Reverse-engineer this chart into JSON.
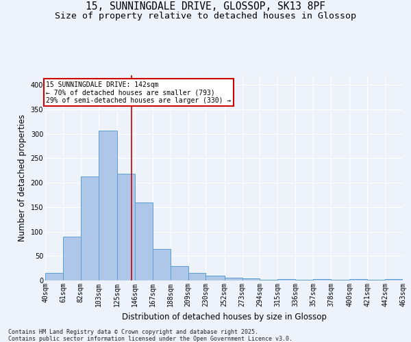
{
  "title_line1": "15, SUNNINGDALE DRIVE, GLOSSOP, SK13 8PF",
  "title_line2": "Size of property relative to detached houses in Glossop",
  "xlabel": "Distribution of detached houses by size in Glossop",
  "ylabel": "Number of detached properties",
  "footnote": "Contains HM Land Registry data © Crown copyright and database right 2025.\nContains public sector information licensed under the Open Government Licence v3.0.",
  "bin_edges": [
    40,
    61,
    82,
    103,
    125,
    146,
    167,
    188,
    209,
    230,
    252,
    273,
    294,
    315,
    336,
    357,
    378,
    400,
    421,
    442,
    463
  ],
  "bar_heights": [
    15,
    90,
    213,
    306,
    218,
    160,
    64,
    30,
    16,
    10,
    6,
    4,
    2,
    3,
    2,
    3,
    2,
    3,
    1,
    3
  ],
  "bar_color": "#aec6e8",
  "bar_edge_color": "#5a9fd4",
  "property_size": 142,
  "vline_color": "#cc0000",
  "annotation_line1": "15 SUNNINGDALE DRIVE: 142sqm",
  "annotation_line2": "← 70% of detached houses are smaller (793)",
  "annotation_line3": "29% of semi-detached houses are larger (330) →",
  "annotation_box_color": "#cc0000",
  "ylim": [
    0,
    420
  ],
  "yticks": [
    0,
    50,
    100,
    150,
    200,
    250,
    300,
    350,
    400
  ],
  "background_color": "#eef2fa",
  "grid_color": "#ffffff",
  "title_fontsize": 10.5,
  "subtitle_fontsize": 9.5,
  "axis_label_fontsize": 8.5,
  "tick_fontsize": 7,
  "annotation_fontsize": 7,
  "footnote_fontsize": 6
}
